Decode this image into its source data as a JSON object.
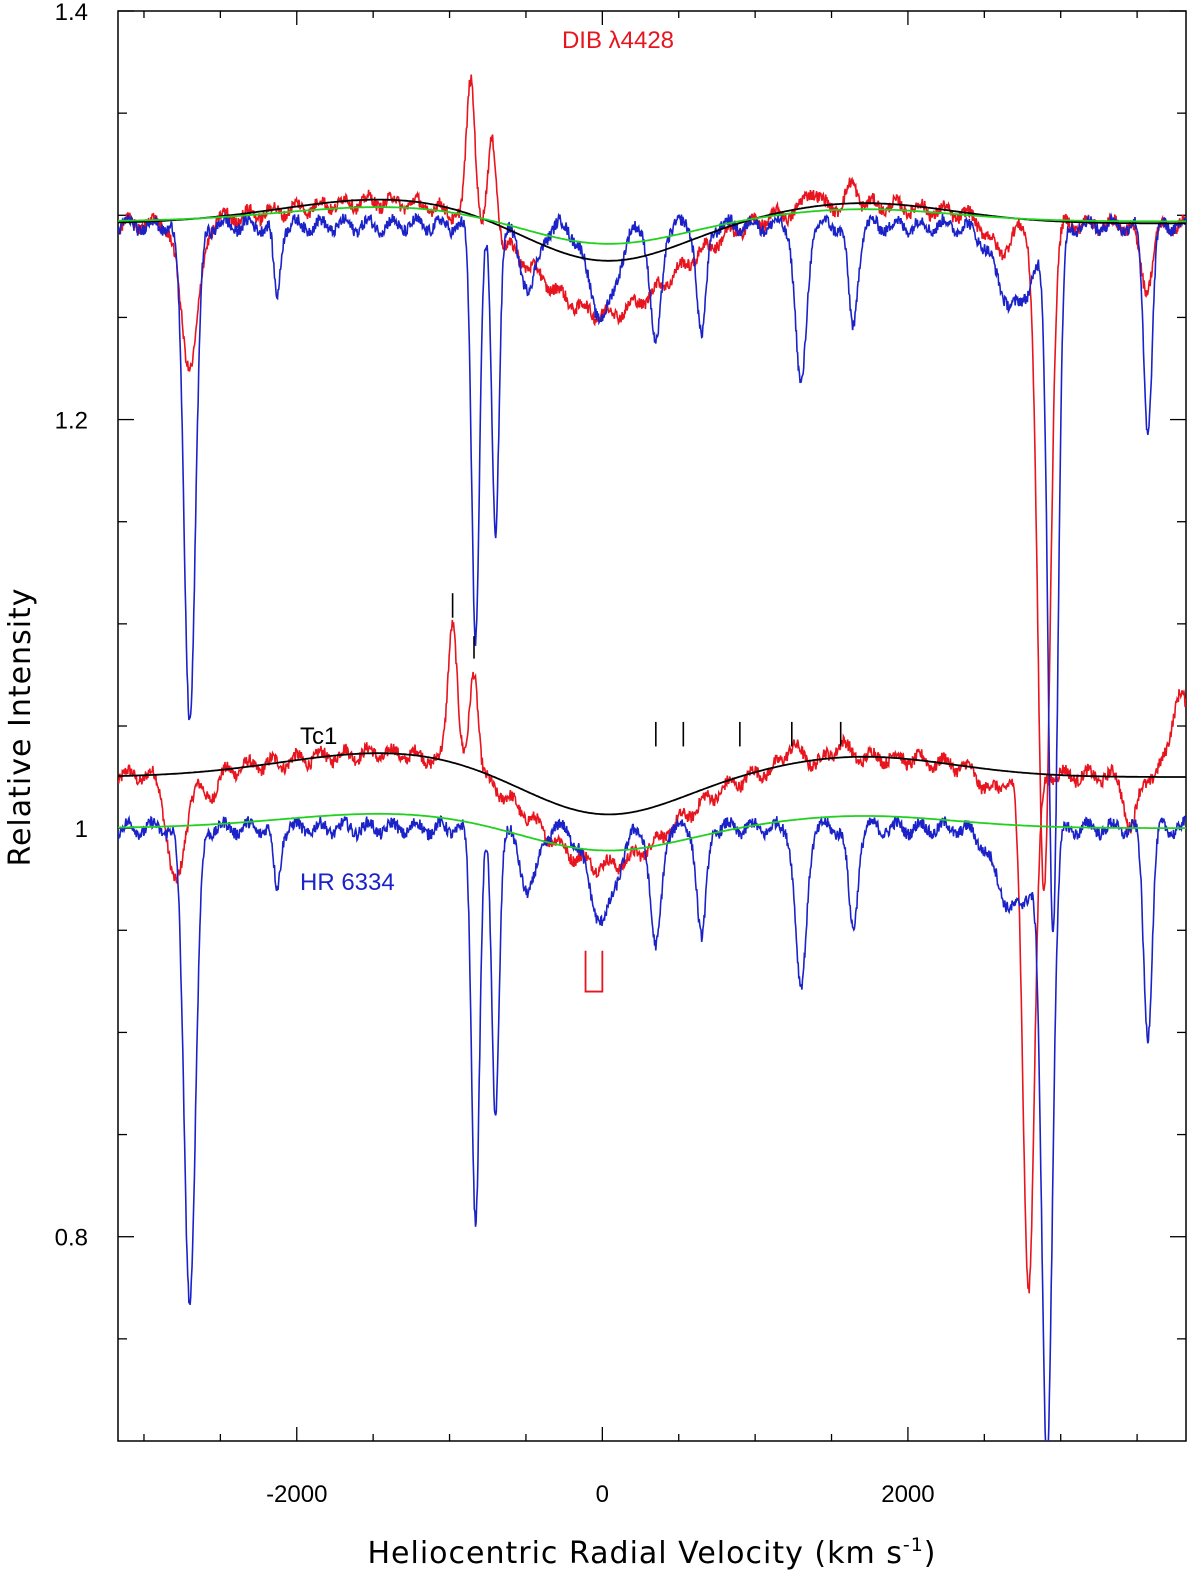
{
  "chart_data": {
    "type": "line",
    "xlabel": "Heliocentric Radial Velocity (km s",
    "xlabel_sup": "-1",
    "xlabel_tail": ")",
    "ylabel": "Relative Intensity",
    "xlim": [
      -3170,
      3820
    ],
    "ylim": [
      0.7,
      1.4
    ],
    "x_ticks": [
      -2000,
      0,
      2000
    ],
    "x_tick_labels": [
      "-2000",
      "0",
      "2000"
    ],
    "x_minor_ticks": [
      -3000,
      -2500,
      -1500,
      -1000,
      -500,
      500,
      1000,
      1500,
      2500,
      3000,
      3500
    ],
    "y_ticks": [
      0.8,
      1.0,
      1.2,
      1.4
    ],
    "y_tick_labels": [
      "0.8",
      "1",
      "1.2",
      "1.4"
    ],
    "y_minor_ticks": [
      0.75,
      0.85,
      0.9,
      0.95,
      1.05,
      1.1,
      1.15,
      1.25,
      1.3,
      1.35
    ],
    "grid": false,
    "colors": {
      "tc1_spectrum": "#e8141e",
      "hr6334_spectrum": "#1a22c8",
      "tc1_fit": "#000000",
      "hr6334_fit": "#22d020"
    },
    "annotations": {
      "dib_label": "DIB λ4428",
      "tc1_label": "Tc1",
      "hr6334_label": "HR 6334"
    },
    "tick_markers_x": [
      -980,
      -840,
      350,
      530,
      900,
      1240,
      1560
    ],
    "bracket_x": [
      -110,
      0
    ],
    "series": [
      {
        "role": "tc1_lower",
        "baseline": 1.025,
        "features": [
          {
            "x": -2790,
            "depth": -0.055,
            "w": 55
          },
          {
            "x": -2580,
            "depth": -0.012,
            "w": 60
          },
          {
            "x": -980,
            "depth": 0.072,
            "w": 30
          },
          {
            "x": -840,
            "depth": 0.052,
            "w": 28
          },
          {
            "x": 0,
            "depth": -0.025,
            "w": 400
          },
          {
            "x": 1240,
            "depth": 0.01,
            "w": 40
          },
          {
            "x": 1560,
            "depth": 0.008,
            "w": 35
          },
          {
            "x": 2550,
            "depth": -0.01,
            "w": 80
          },
          {
            "x": 2790,
            "depth": -0.25,
            "w": 38
          },
          {
            "x": 3460,
            "depth": -0.025,
            "w": 40
          },
          {
            "x": 3780,
            "depth": 0.04,
            "w": 60
          }
        ]
      },
      {
        "role": "hr6334_lower",
        "baseline": 1.0,
        "features": [
          {
            "x": -2700,
            "depth": -0.23,
            "w": 38
          },
          {
            "x": -2130,
            "depth": -0.03,
            "w": 22
          },
          {
            "x": -830,
            "depth": -0.19,
            "w": 26
          },
          {
            "x": -700,
            "depth": -0.14,
            "w": 24
          },
          {
            "x": -480,
            "depth": -0.03,
            "w": 60
          },
          {
            "x": 0,
            "depth": -0.045,
            "w": 90
          },
          {
            "x": 350,
            "depth": -0.06,
            "w": 35
          },
          {
            "x": 650,
            "depth": -0.055,
            "w": 30
          },
          {
            "x": 1300,
            "depth": -0.08,
            "w": 35
          },
          {
            "x": 1640,
            "depth": -0.05,
            "w": 30
          },
          {
            "x": 2700,
            "depth": -0.04,
            "w": 120
          },
          {
            "x": 2910,
            "depth": -0.3,
            "w": 35
          },
          {
            "x": 3570,
            "depth": -0.1,
            "w": 28
          }
        ]
      },
      {
        "role": "tc1_upper",
        "baseline": 1.295,
        "features": [
          {
            "x": -2700,
            "depth": -0.07,
            "w": 60
          },
          {
            "x": -860,
            "depth": 0.07,
            "w": 28
          },
          {
            "x": -720,
            "depth": 0.045,
            "w": 28
          },
          {
            "x": 0,
            "depth": -0.025,
            "w": 400
          },
          {
            "x": 1370,
            "depth": 0.01,
            "w": 40
          },
          {
            "x": 1640,
            "depth": 0.01,
            "w": 35
          },
          {
            "x": 2600,
            "depth": -0.015,
            "w": 80
          },
          {
            "x": 2890,
            "depth": -0.33,
            "w": 40
          },
          {
            "x": 3560,
            "depth": -0.03,
            "w": 40
          }
        ]
      },
      {
        "role": "hr6334_upper",
        "baseline": 1.295,
        "features": [
          {
            "x": -2700,
            "depth": -0.24,
            "w": 38
          },
          {
            "x": -2130,
            "depth": -0.035,
            "w": 22
          },
          {
            "x": -830,
            "depth": -0.2,
            "w": 26
          },
          {
            "x": -700,
            "depth": -0.15,
            "w": 24
          },
          {
            "x": -480,
            "depth": -0.03,
            "w": 60
          },
          {
            "x": 0,
            "depth": -0.045,
            "w": 90
          },
          {
            "x": 350,
            "depth": -0.06,
            "w": 35
          },
          {
            "x": 650,
            "depth": -0.055,
            "w": 30
          },
          {
            "x": 1300,
            "depth": -0.08,
            "w": 35
          },
          {
            "x": 1640,
            "depth": -0.05,
            "w": 30
          },
          {
            "x": 2700,
            "depth": -0.04,
            "w": 120
          },
          {
            "x": 2950,
            "depth": -0.34,
            "w": 32
          },
          {
            "x": 3570,
            "depth": -0.1,
            "w": 28
          }
        ]
      }
    ]
  }
}
